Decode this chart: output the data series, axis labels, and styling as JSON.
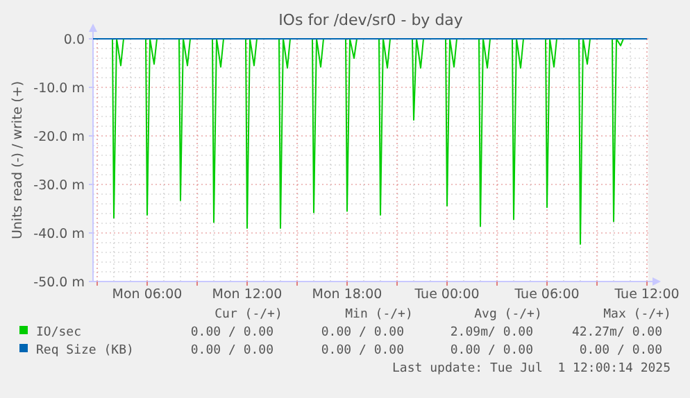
{
  "chart_data": {
    "type": "line",
    "title": "IOs for /dev/sr0 - by day",
    "ylabel": "Units read (-) / write (+)",
    "xlim": [
      "2025-06-30T02:45",
      "2025-07-01T12:05"
    ],
    "xticks": [
      {
        "value": "2025-06-30T03:00",
        "label": null
      },
      {
        "value": "2025-06-30T06:00",
        "label": "Mon 06:00"
      },
      {
        "value": "2025-06-30T09:00",
        "label": null
      },
      {
        "value": "2025-06-30T12:00",
        "label": "Mon 12:00"
      },
      {
        "value": "2025-06-30T15:00",
        "label": null
      },
      {
        "value": "2025-06-30T18:00",
        "label": "Mon 18:00"
      },
      {
        "value": "2025-06-30T21:00",
        "label": null
      },
      {
        "value": "2025-07-01T00:00",
        "label": "Tue 00:00"
      },
      {
        "value": "2025-07-01T03:00",
        "label": null
      },
      {
        "value": "2025-07-01T06:00",
        "label": "Tue 06:00"
      },
      {
        "value": "2025-07-01T09:00",
        "label": null
      },
      {
        "value": "2025-07-01T12:00",
        "label": "Tue 12:00"
      }
    ],
    "ylim": [
      -50,
      0
    ],
    "yticks": [
      {
        "value": -50,
        "label": "-50.0 m"
      },
      {
        "value": -40,
        "label": "-40.0 m"
      },
      {
        "value": -30,
        "label": "-30.0 m"
      },
      {
        "value": -20,
        "label": "-20.0 m"
      },
      {
        "value": -10,
        "label": "-10.0 m"
      },
      {
        "value": 0,
        "label": "0.0"
      }
    ],
    "grid": true,
    "legend": "bottom",
    "marker": "none",
    "line_style": "solid",
    "series": [
      {
        "name": "IO/sec",
        "color": "#00cc00",
        "x": [
          "2025-06-30T02:45",
          "2025-06-30T03:55",
          "2025-06-30T04:00",
          "2025-06-30T04:10",
          "2025-06-30T04:25",
          "2025-06-30T04:35",
          "2025-06-30T05:55",
          "2025-06-30T06:00",
          "2025-06-30T06:10",
          "2025-06-30T06:25",
          "2025-06-30T06:35",
          "2025-06-30T07:55",
          "2025-06-30T08:00",
          "2025-06-30T08:10",
          "2025-06-30T08:25",
          "2025-06-30T08:35",
          "2025-06-30T09:55",
          "2025-06-30T10:00",
          "2025-06-30T10:10",
          "2025-06-30T10:25",
          "2025-06-30T10:35",
          "2025-06-30T11:55",
          "2025-06-30T12:00",
          "2025-06-30T12:10",
          "2025-06-30T12:25",
          "2025-06-30T12:35",
          "2025-06-30T13:55",
          "2025-06-30T14:00",
          "2025-06-30T14:10",
          "2025-06-30T14:25",
          "2025-06-30T14:35",
          "2025-06-30T15:55",
          "2025-06-30T16:00",
          "2025-06-30T16:10",
          "2025-06-30T16:25",
          "2025-06-30T16:35",
          "2025-06-30T17:55",
          "2025-06-30T18:00",
          "2025-06-30T18:10",
          "2025-06-30T18:25",
          "2025-06-30T18:35",
          "2025-06-30T19:55",
          "2025-06-30T20:00",
          "2025-06-30T20:10",
          "2025-06-30T20:25",
          "2025-06-30T20:35",
          "2025-06-30T21:55",
          "2025-06-30T22:00",
          "2025-06-30T22:10",
          "2025-06-30T22:25",
          "2025-06-30T22:35",
          "2025-06-30T23:55",
          "2025-07-01T00:00",
          "2025-07-01T00:10",
          "2025-07-01T00:25",
          "2025-07-01T00:35",
          "2025-07-01T01:55",
          "2025-07-01T02:00",
          "2025-07-01T02:10",
          "2025-07-01T02:25",
          "2025-07-01T02:35",
          "2025-07-01T03:55",
          "2025-07-01T04:00",
          "2025-07-01T04:10",
          "2025-07-01T04:25",
          "2025-07-01T04:35",
          "2025-07-01T05:55",
          "2025-07-01T06:00",
          "2025-07-01T06:10",
          "2025-07-01T06:25",
          "2025-07-01T06:35",
          "2025-07-01T07:55",
          "2025-07-01T08:00",
          "2025-07-01T08:10",
          "2025-07-01T08:25",
          "2025-07-01T08:35",
          "2025-07-01T09:55",
          "2025-07-01T10:00",
          "2025-07-01T10:10",
          "2025-07-01T10:25",
          "2025-07-01T10:35",
          "2025-07-01T12:00"
        ],
        "values": [
          0,
          0,
          -36.9,
          0,
          -5.5,
          0,
          0,
          -36.3,
          0,
          -5.2,
          0,
          0,
          -33.3,
          0,
          -5.5,
          0,
          0,
          -37.8,
          0,
          -5.8,
          0,
          0,
          -39.0,
          0,
          -5.5,
          0,
          0,
          -39.0,
          0,
          -6.0,
          0,
          0,
          -35.8,
          0,
          -5.8,
          0,
          0,
          -35.5,
          0,
          -4.0,
          0,
          0,
          -36.3,
          0,
          -6.0,
          0,
          0,
          -16.7,
          0,
          -6.0,
          0,
          0,
          -34.4,
          0,
          -5.8,
          0,
          0,
          -38.6,
          0,
          -6.0,
          0,
          0,
          -37.2,
          0,
          -6.0,
          0,
          0,
          -34.7,
          0,
          -5.8,
          0,
          0,
          -42.3,
          0,
          -5.2,
          0,
          0,
          -37.6,
          0,
          -1.4,
          0,
          0
        ]
      },
      {
        "name": "Req Size (KB)",
        "color": "#0066b3",
        "x": [
          "2025-06-30T02:45",
          "2025-07-01T12:00"
        ],
        "values": [
          0,
          0
        ]
      }
    ],
    "annotations": [
      "Cur (-/+)",
      "Min (-/+)",
      "Avg (-/+)",
      "Max (-/+)",
      "0.00 / 0.00",
      "0.00 / 0.00",
      "2.09m/ 0.00",
      "42.27m/ 0.00",
      "0.00 / 0.00",
      "0.00 / 0.00",
      "0.00 / 0.00",
      "0.00 / 0.00",
      "Last update: Tue Jul  1 12:00:14 2025"
    ]
  }
}
